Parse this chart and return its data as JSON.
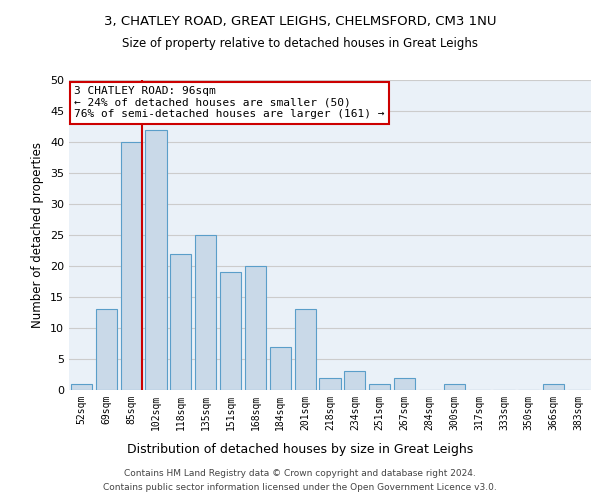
{
  "title1": "3, CHATLEY ROAD, GREAT LEIGHS, CHELMSFORD, CM3 1NU",
  "title2": "Size of property relative to detached houses in Great Leighs",
  "xlabel": "Distribution of detached houses by size in Great Leighs",
  "ylabel": "Number of detached properties",
  "footnote1": "Contains HM Land Registry data © Crown copyright and database right 2024.",
  "footnote2": "Contains public sector information licensed under the Open Government Licence v3.0.",
  "bin_labels": [
    "52sqm",
    "69sqm",
    "85sqm",
    "102sqm",
    "118sqm",
    "135sqm",
    "151sqm",
    "168sqm",
    "184sqm",
    "201sqm",
    "218sqm",
    "234sqm",
    "251sqm",
    "267sqm",
    "284sqm",
    "300sqm",
    "317sqm",
    "333sqm",
    "350sqm",
    "366sqm",
    "383sqm"
  ],
  "bar_values": [
    1,
    13,
    40,
    42,
    22,
    25,
    19,
    20,
    7,
    13,
    2,
    3,
    1,
    2,
    0,
    1,
    0,
    0,
    0,
    1,
    0
  ],
  "bar_color": "#c9d9e8",
  "bar_edge_color": "#5a9ec9",
  "grid_color": "#cccccc",
  "bg_color": "#eaf1f8",
  "annotation_box_color": "#cc0000",
  "property_line_color": "#cc0000",
  "property_bin_index": 2,
  "annotation_text": "3 CHATLEY ROAD: 96sqm\n← 24% of detached houses are smaller (50)\n76% of semi-detached houses are larger (161) →",
  "ylim": [
    0,
    50
  ],
  "yticks": [
    0,
    5,
    10,
    15,
    20,
    25,
    30,
    35,
    40,
    45,
    50
  ]
}
